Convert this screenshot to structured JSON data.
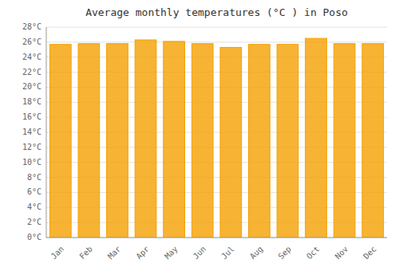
{
  "chart_data": {
    "type": "bar",
    "title": "Average monthly temperatures (°C ) in Poso",
    "categories": [
      "Jan",
      "Feb",
      "Mar",
      "Apr",
      "May",
      "Jun",
      "Jul",
      "Aug",
      "Sep",
      "Oct",
      "Nov",
      "Dec"
    ],
    "values": [
      25.7,
      25.8,
      25.8,
      26.3,
      26.1,
      25.8,
      25.3,
      25.7,
      25.7,
      26.5,
      25.8,
      25.8
    ],
    "color": "#F5A000",
    "ylim": [
      0,
      28
    ],
    "yticks": [
      {
        "value": 0,
        "label": "0°C"
      },
      {
        "value": 2,
        "label": "2°C"
      },
      {
        "value": 4,
        "label": "4°C"
      },
      {
        "value": 6,
        "label": "6°C"
      },
      {
        "value": 8,
        "label": "8°C"
      },
      {
        "value": 10,
        "label": "10°C"
      },
      {
        "value": 12,
        "label": "12°C"
      },
      {
        "value": 14,
        "label": "14°C"
      },
      {
        "value": 16,
        "label": "16°C"
      },
      {
        "value": 18,
        "label": "18°C"
      },
      {
        "value": 20,
        "label": "20°C"
      },
      {
        "value": 22,
        "label": "22°C"
      },
      {
        "value": 24,
        "label": "24°C"
      },
      {
        "value": 26,
        "label": "26°C"
      },
      {
        "value": 28,
        "label": "28°C"
      }
    ],
    "grid": true
  }
}
